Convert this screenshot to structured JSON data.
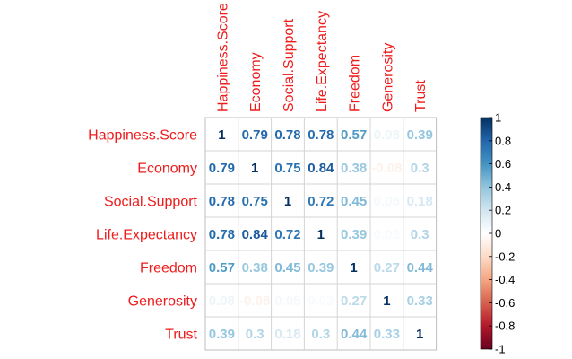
{
  "chart_data": {
    "type": "heatmap",
    "variables": [
      "Happiness.Score",
      "Economy",
      "Social.Support",
      "Life.Expectancy",
      "Freedom",
      "Generosity",
      "Trust"
    ],
    "matrix": [
      [
        1,
        0.79,
        0.78,
        0.78,
        0.57,
        0.08,
        0.39
      ],
      [
        0.79,
        1,
        0.75,
        0.84,
        0.38,
        -0.08,
        0.3
      ],
      [
        0.78,
        0.75,
        1,
        0.72,
        0.45,
        0.05,
        0.18
      ],
      [
        0.78,
        0.84,
        0.72,
        1,
        0.39,
        0.03,
        0.3
      ],
      [
        0.57,
        0.38,
        0.45,
        0.39,
        1,
        0.27,
        0.44
      ],
      [
        0.08,
        -0.08,
        0.05,
        0.03,
        0.27,
        1,
        0.33
      ],
      [
        0.39,
        0.3,
        0.18,
        0.3,
        0.44,
        0.33,
        1
      ]
    ],
    "labels": [
      [
        "1",
        "0.79",
        "0.78",
        "0.78",
        "0.57",
        "0.08",
        "0.39"
      ],
      [
        "0.79",
        "1",
        "0.75",
        "0.84",
        "0.38",
        "-0.08",
        "0.3"
      ],
      [
        "0.78",
        "0.75",
        "1",
        "0.72",
        "0.45",
        "0.05",
        "0.18"
      ],
      [
        "0.78",
        "0.84",
        "0.72",
        "1",
        "0.39",
        "0.03",
        "0.3"
      ],
      [
        "0.57",
        "0.38",
        "0.45",
        "0.39",
        "1",
        "0.27",
        "0.44"
      ],
      [
        "0.08",
        "-0.08",
        "0.05",
        "0.03",
        "0.27",
        "1",
        "0.33"
      ],
      [
        "0.39",
        "0.3",
        "0.18",
        "0.3",
        "0.44",
        "0.33",
        "1"
      ]
    ],
    "colorbar": {
      "range": [
        -1,
        1
      ],
      "ticks": [
        "1",
        "0.8",
        "0.6",
        "0.4",
        "0.2",
        "0",
        "-0.2",
        "-0.4",
        "-0.6",
        "-0.8",
        "-1"
      ],
      "colors": [
        "#053061",
        "#2166ac",
        "#4393c3",
        "#92c5de",
        "#d1e5f0",
        "#ffffff",
        "#fddbc7",
        "#f4a582",
        "#d6604d",
        "#b2182b",
        "#67001f"
      ]
    },
    "label_color": "#ee1c1c",
    "grid": true
  }
}
